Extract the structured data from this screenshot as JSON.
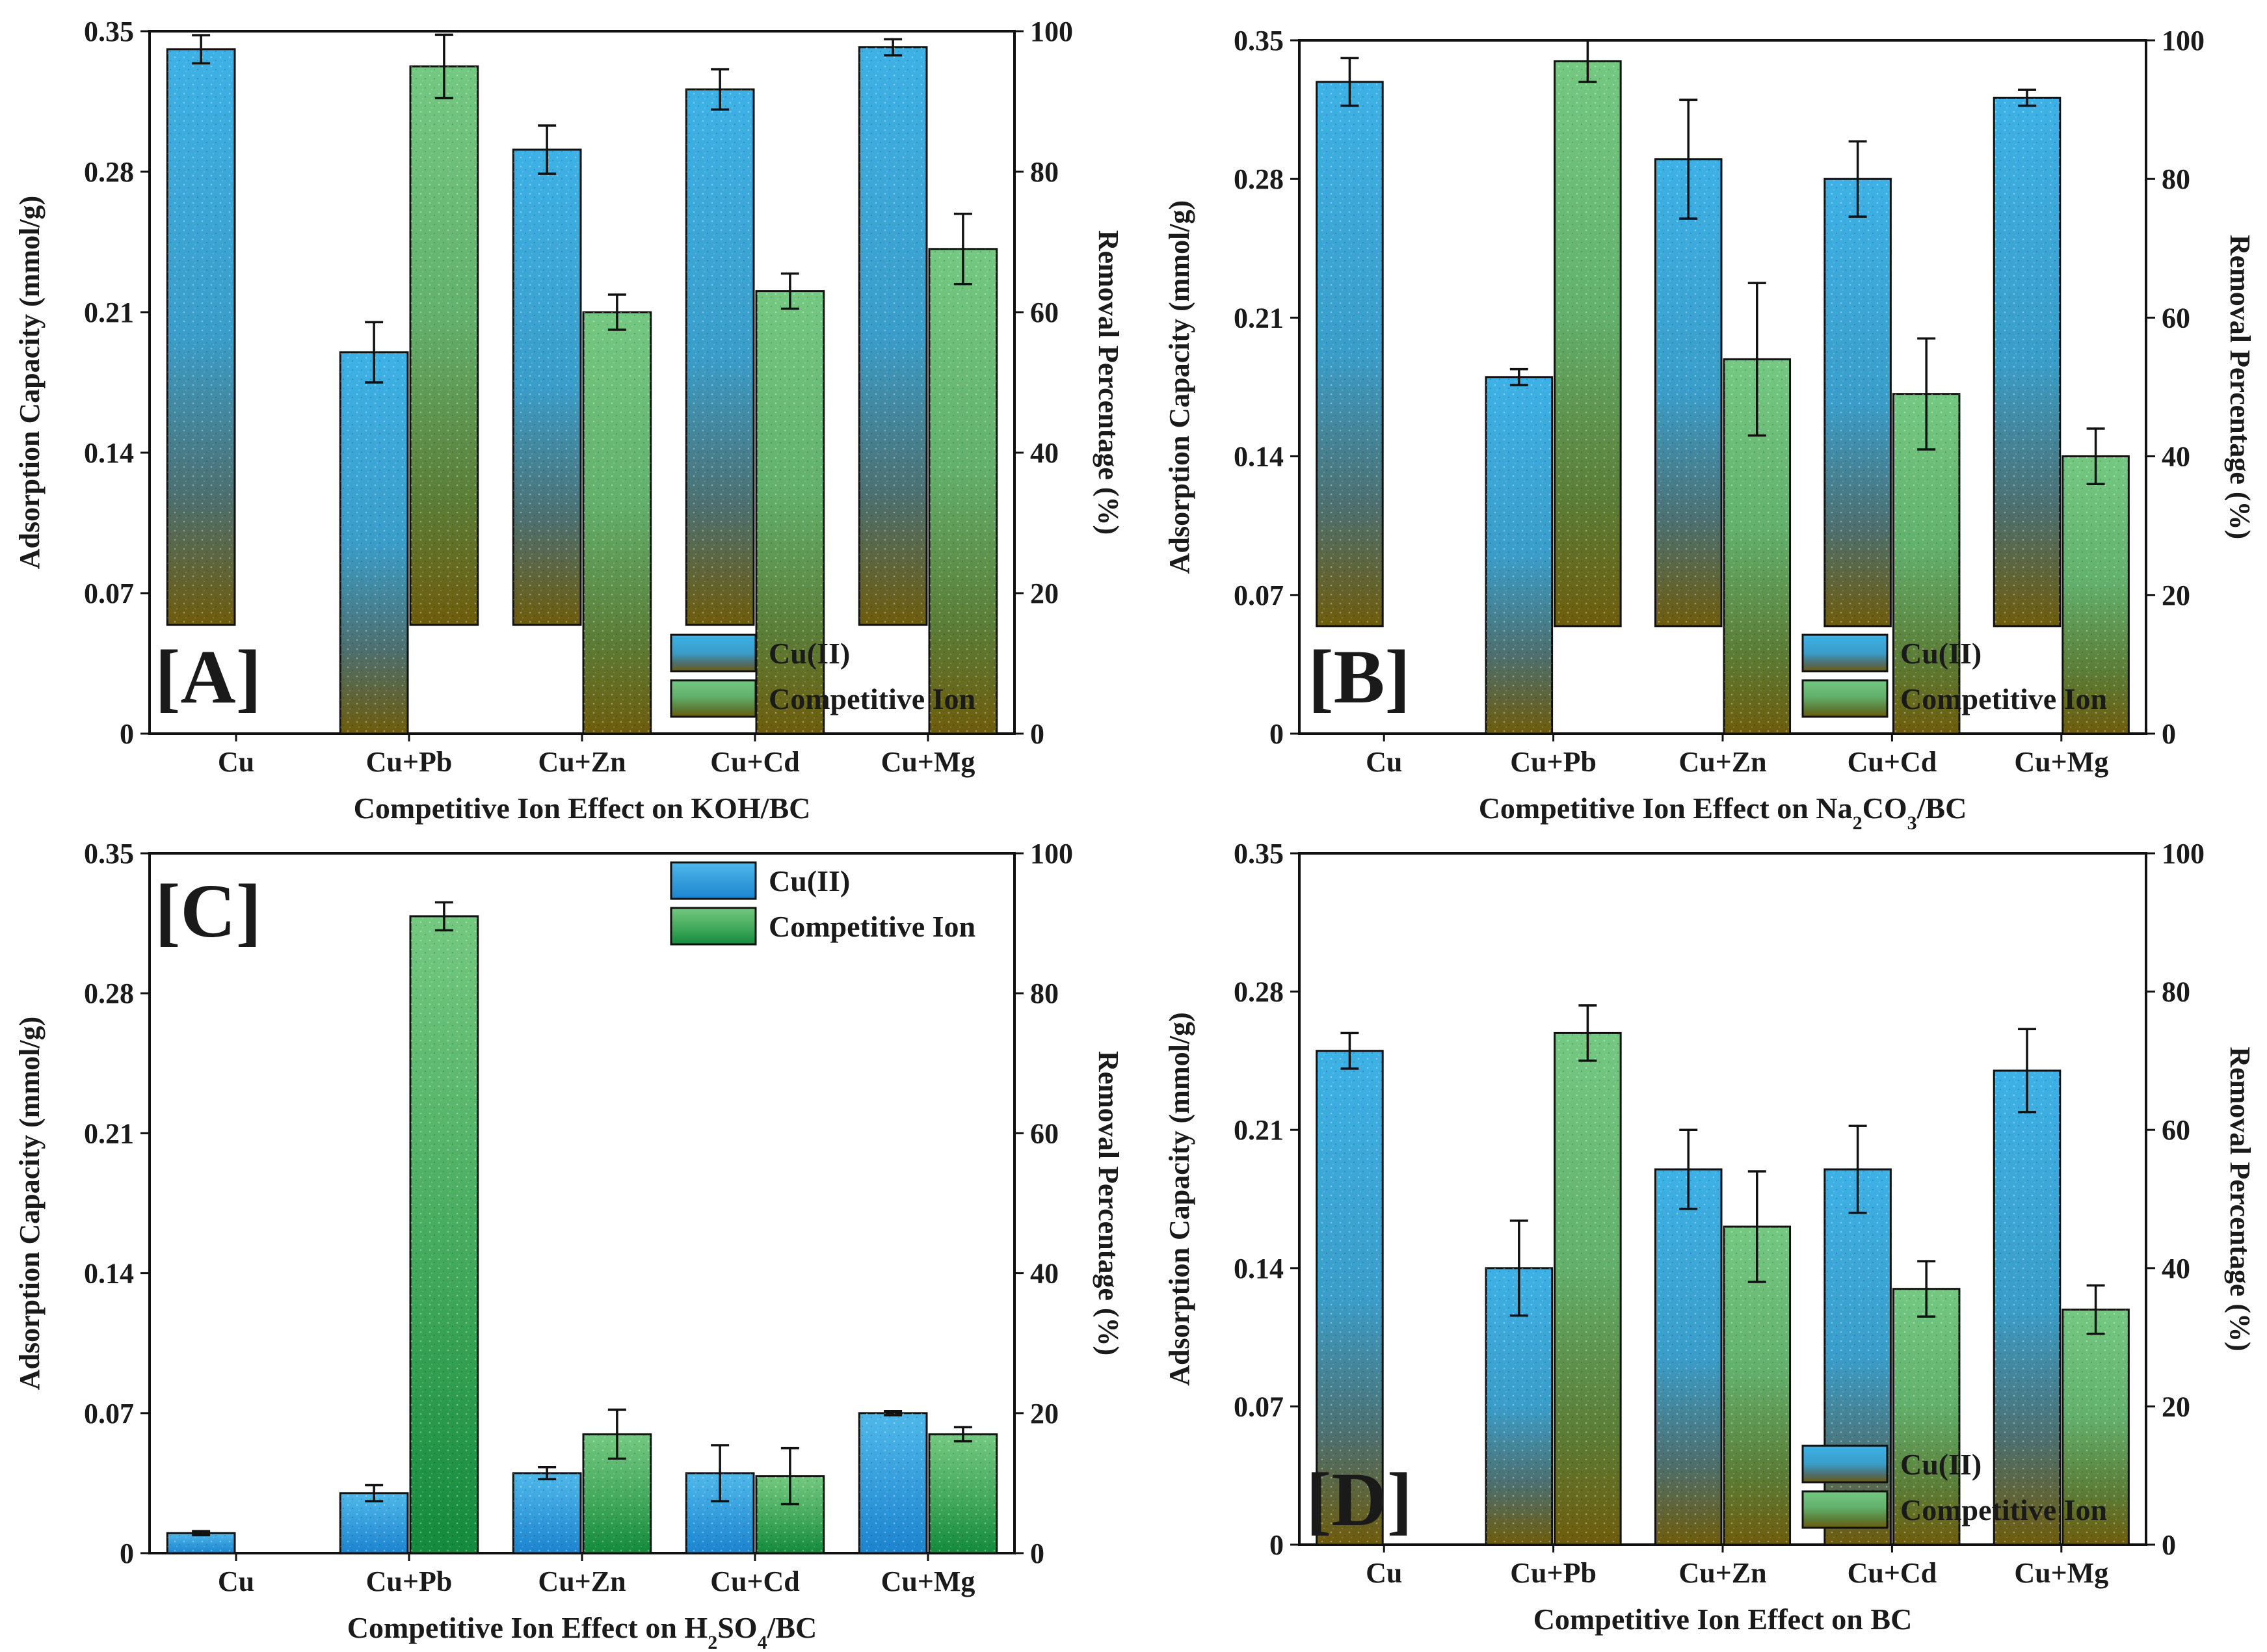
{
  "chart_data": [
    {
      "panel_label": "[A]",
      "type": "bar",
      "xlabel": "Competitive Ion Effect on KOH/BC",
      "ylabel": "Adsorption Capacity (mmol/g)",
      "y2label": "Removal Percentage (%)",
      "ylim": [
        0,
        0.35
      ],
      "y2lim": [
        0,
        100
      ],
      "yticks": [
        "0",
        "0.07",
        "0.14",
        "0.21",
        "0.28",
        "0.35"
      ],
      "y2ticks": [
        "0",
        "20",
        "40",
        "60",
        "80",
        "100"
      ],
      "legend_position": "bottom-right",
      "categories": [
        "Cu",
        "Cu+Pb",
        "Cu+Zn",
        "Cu+Cd",
        "Cu+Mg"
      ],
      "series": [
        {
          "name": "Cu(II)",
          "axis": "left",
          "values": [
            0.341,
            0.19,
            0.291,
            0.321,
            0.342
          ],
          "errors": [
            0.007,
            0.015,
            0.012,
            0.01,
            0.004
          ]
        },
        {
          "name": "Competitive Ion",
          "axis": "right",
          "values": [
            null,
            95,
            60,
            63,
            69
          ],
          "errors": [
            null,
            4.5,
            2.5,
            2.5,
            5
          ]
        }
      ]
    },
    {
      "panel_label": "[B]",
      "type": "bar",
      "xlabel_parts": [
        "Competitive Ion Effect on Na",
        "2",
        "CO",
        "3",
        "/BC"
      ],
      "ylabel": "Adsorption Capacity (mmol/g)",
      "y2label": "Removal Percentage (%)",
      "ylim": [
        0,
        0.35
      ],
      "y2lim": [
        0,
        100
      ],
      "yticks": [
        "0",
        "0.07",
        "0.14",
        "0.21",
        "0.28",
        "0.35"
      ],
      "y2ticks": [
        "0",
        "20",
        "40",
        "60",
        "80",
        "100"
      ],
      "legend_position": "bottom-right",
      "categories": [
        "Cu",
        "Cu+Pb",
        "Cu+Zn",
        "Cu+Cd",
        "Cu+Mg"
      ],
      "series": [
        {
          "name": "Cu(II)",
          "axis": "left",
          "values": [
            0.329,
            0.18,
            0.29,
            0.28,
            0.321
          ],
          "errors": [
            0.012,
            0.004,
            0.03,
            0.019,
            0.004
          ]
        },
        {
          "name": "Competitive Ion",
          "axis": "right",
          "values": [
            null,
            97,
            54,
            49,
            40
          ],
          "errors": [
            null,
            3,
            11,
            8,
            4
          ]
        }
      ]
    },
    {
      "panel_label": "[C]",
      "type": "bar",
      "xlabel_parts": [
        "Competitive Ion Effect on H",
        "2",
        "SO",
        "4",
        "/BC"
      ],
      "ylabel": "Adsorption Capacity (mmol/g)",
      "y2label": "Removal Percentage (%)",
      "ylim": [
        0,
        0.35
      ],
      "y2lim": [
        0,
        100
      ],
      "yticks": [
        "0",
        "0.07",
        "0.14",
        "0.21",
        "0.28",
        "0.35"
      ],
      "y2ticks": [
        "0",
        "20",
        "40",
        "60",
        "80",
        "100"
      ],
      "legend_position": "top-right",
      "categories": [
        "Cu",
        "Cu+Pb",
        "Cu+Zn",
        "Cu+Cd",
        "Cu+Mg"
      ],
      "series": [
        {
          "name": "Cu(II)",
          "axis": "left",
          "values": [
            0.01,
            0.03,
            0.04,
            0.04,
            0.07
          ],
          "errors": [
            0.001,
            0.004,
            0.003,
            0.014,
            0.001
          ]
        },
        {
          "name": "Competitive Ion",
          "axis": "right",
          "values": [
            null,
            91,
            17,
            11,
            17
          ],
          "errors": [
            null,
            2,
            3.5,
            4,
            1
          ]
        }
      ]
    },
    {
      "panel_label": "[D]",
      "type": "bar",
      "xlabel": "Competitive Ion Effect on BC",
      "ylabel": "Adsorption Capacity (mmol/g)",
      "y2label": "Removal Percentage (%)",
      "ylim": [
        0,
        0.35
      ],
      "y2lim": [
        0,
        100
      ],
      "yticks": [
        "0",
        "0.07",
        "0.14",
        "0.21",
        "0.28",
        "0.35"
      ],
      "y2ticks": [
        "0",
        "20",
        "40",
        "60",
        "80",
        "100"
      ],
      "legend_position": "bottom-right",
      "categories": [
        "Cu",
        "Cu+Pb",
        "Cu+Zn",
        "Cu+Cd",
        "Cu+Mg"
      ],
      "series": [
        {
          "name": "Cu(II)",
          "axis": "left",
          "values": [
            0.25,
            0.14,
            0.19,
            0.19,
            0.24
          ],
          "errors": [
            0.009,
            0.024,
            0.02,
            0.022,
            0.021
          ]
        },
        {
          "name": "Competitive Ion",
          "axis": "right",
          "values": [
            null,
            74,
            46,
            37,
            34
          ],
          "errors": [
            null,
            4,
            8,
            4,
            3.5
          ]
        }
      ]
    }
  ],
  "colors": {
    "cu_blue": "#3aaee2",
    "cu_blue_deep": "#1e8ed6",
    "ion_green": "#6cc27a",
    "ion_green_deep": "#138a3d",
    "olive": "#6e5c0c",
    "axis": "#111111"
  }
}
